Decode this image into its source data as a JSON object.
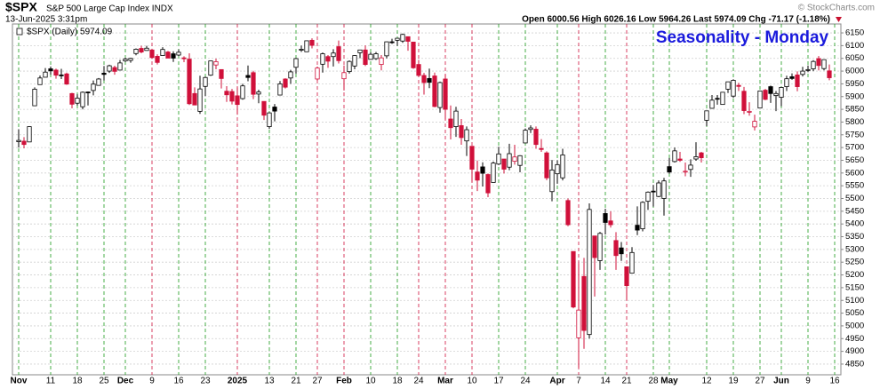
{
  "chart_data": {
    "type": "candlestick",
    "symbol": "$SPX",
    "title": "S&P 500 Large Cap Index INDX",
    "date": "13-Jun-2025 3:31pm",
    "quote": "Open 6000.56 High 6026.16 Low 5964.26 Last 5974.09 Chg -71.17 (-1.18%)",
    "watermark": "© StockCharts.com",
    "legend_label": "$SPX (Daily) 5974.09",
    "annotation": "Seasonality - Monday",
    "annotation_color": "#1a1adc",
    "up_color": "#000000",
    "down_color": "#d0103a",
    "week_up_color": "#1a9a1a",
    "week_down_color": "#d0103a",
    "grid": true,
    "categories": [
      "Nov",
      null,
      null,
      null,
      null,
      null,
      "11",
      null,
      null,
      null,
      null,
      "18",
      null,
      null,
      null,
      null,
      "25",
      null,
      null,
      null,
      "Dec",
      null,
      null,
      null,
      null,
      "9",
      null,
      null,
      null,
      null,
      "16",
      null,
      null,
      null,
      null,
      "23",
      null,
      null,
      null,
      null,
      null,
      "2025",
      null,
      null,
      null,
      null,
      null,
      "13",
      null,
      null,
      null,
      null,
      "21",
      null,
      null,
      null,
      "27",
      null,
      null,
      null,
      null,
      "Feb",
      null,
      null,
      null,
      null,
      "10",
      null,
      null,
      null,
      null,
      "18",
      null,
      null,
      null,
      "24",
      null,
      null,
      null,
      null,
      "Mar",
      null,
      null,
      null,
      null,
      "10",
      null,
      null,
      null,
      null,
      "17",
      null,
      null,
      null,
      null,
      "24",
      null,
      null,
      null,
      null,
      null,
      "Apr",
      null,
      null,
      null,
      "7",
      null,
      null,
      null,
      null,
      "14",
      null,
      null,
      null,
      "21",
      null,
      null,
      null,
      null,
      "28",
      null,
      null,
      "May",
      null,
      null,
      null,
      null,
      null,
      null,
      "12",
      null,
      null,
      null,
      null,
      "19",
      null,
      null,
      null,
      null,
      "27",
      null,
      null,
      null,
      "Jun",
      null,
      null,
      null,
      null,
      "9",
      null,
      null,
      null,
      null,
      "16"
    ],
    "open": [
      5723,
      5725,
      5722,
      5864,
      5947,
      5976,
      6009,
      6004,
      5985,
      5989,
      5912,
      5874,
      5860,
      5918,
      5924,
      5944,
      5992,
      6000,
      6014,
      6004,
      6040,
      6042,
      6069,
      6089,
      6081,
      6083,
      6058,
      6061,
      6075,
      6068,
      6063,
      6052,
      6047,
      5912,
      5842,
      5940,
      5984,
      6024,
      6006,
      5921,
      5920,
      5903,
      5892,
      5983,
      5994,
      5910,
      5881,
      5782,
      5859,
      5906,
      5969,
      5973,
      6015,
      6082,
      6076,
      6121,
      5969,
      6027,
      6057,
      6057,
      6096,
      5970,
      5998,
      6020,
      6072,
      6083,
      6046,
      6049,
      6026,
      6060,
      6115,
      6121,
      6118,
      6135,
      6114,
      6026,
      5983,
      5971,
      5981,
      5857,
      5969,
      5812,
      5782,
      5786,
      5726,
      5705,
      5604,
      5624,
      5594,
      5563,
      5635,
      5655,
      5623,
      5646,
      5630,
      5718,
      5771,
      5772,
      5696,
      5679,
      5527,
      5597,
      5581,
      5492,
      5292,
      4953,
      5194,
      4966,
      5353,
      5256,
      5441,
      5412,
      5335,
      5306,
      5232,
      5207,
      5395,
      5381,
      5489,
      5529,
      5508,
      5500,
      5625,
      5645,
      5655,
      5605,
      5614,
      5655,
      5679,
      5807,
      5854,
      5893,
      5869,
      5929,
      5902,
      5944,
      5921,
      5841,
      5781,
      5855,
      5925,
      5939,
      5904,
      5897,
      5939,
      5978,
      5985,
      5987,
      6004,
      6009,
      6049,
      6010,
      6001,
      null
    ],
    "high": [
      5772,
      5741,
      5783,
      5936,
      5983,
      6012,
      6018,
      6010,
      6009,
      5994,
      5915,
      5909,
      5920,
      5920,
      5963,
      5973,
      6020,
      6025,
      6021,
      6044,
      6053,
      6052,
      6089,
      6099,
      6099,
      6088,
      6066,
      6094,
      6079,
      6078,
      6085,
      6058,
      6070,
      5936,
      5982,
      5978,
      6040,
      6049,
      6007,
      5941,
      5930,
      5936,
      5950,
      6022,
      6001,
      5927,
      5881,
      5838,
      5871,
      5961,
      5972,
      6005,
      6052,
      6100,
      6119,
      6129,
      6018,
      6073,
      6063,
      6086,
      6120,
      6022,
      6042,
      6062,
      6084,
      6101,
      6074,
      6075,
      6063,
      6116,
      6127,
      6129,
      6147,
      6135,
      6114,
      6044,
      5993,
      6010,
      5994,
      5959,
      5987,
      5865,
      5860,
      5812,
      5783,
      5705,
      5649,
      5642,
      5598,
      5645,
      5703,
      5655,
      5715,
      5711,
      5670,
      5775,
      5787,
      5783,
      5733,
      5685,
      5651,
      5650,
      5695,
      5500,
      5292,
      5246,
      5267,
      5481,
      5353,
      5369,
      5460,
      5450,
      5368,
      5329,
      5232,
      5309,
      5469,
      5489,
      5528,
      5553,
      5571,
      5581,
      5659,
      5700,
      5683,
      5641,
      5654,
      5721,
      5683,
      5845,
      5906,
      5906,
      5917,
      5958,
      5968,
      5954,
      5938,
      5878,
      5829,
      5923,
      5930,
      5943,
      5922,
      5938,
      5982,
      5991,
      5999,
      6017,
      6022,
      6043,
      6059,
      6045,
      6026,
      null
    ],
    "low": [
      5700,
      5697,
      5722,
      5864,
      5947,
      5976,
      5986,
      5970,
      5969,
      5946,
      5854,
      5865,
      5850,
      5865,
      5905,
      5944,
      5963,
      5993,
      5986,
      6004,
      6036,
      6033,
      6062,
      6070,
      6080,
      6048,
      6026,
      6061,
      6051,
      6036,
      6059,
      6035,
      5867,
      5866,
      5832,
      5902,
      5981,
      6007,
      5932,
      5879,
      5869,
      5829,
      5888,
      5960,
      5890,
      5874,
      5808,
      5773,
      5803,
      5906,
      5932,
      5950,
      5990,
      6075,
      6075,
      6089,
      5962,
      5994,
      6013,
      6018,
      6030,
      5924,
      5990,
      6007,
      6051,
      6020,
      6045,
      6044,
      6003,
      6050,
      6107,
      6099,
      6111,
      6080,
      6009,
      5977,
      5908,
      5933,
      5858,
      5837,
      5810,
      5732,
      5742,
      5711,
      5667,
      5565,
      5529,
      5547,
      5505,
      5563,
      5631,
      5598,
      5611,
      5633,
      5603,
      5718,
      5757,
      5695,
      5683,
      5572,
      5489,
      5558,
      5571,
      5391,
      5069,
      4835,
      4910,
      4950,
      5115,
      5220,
      5359,
      5386,
      5220,
      5255,
      5101,
      5207,
      5356,
      5371,
      5455,
      5468,
      5505,
      5433,
      5597,
      5641,
      5644,
      5587,
      5585,
      5648,
      5641,
      5784,
      5852,
      5868,
      5868,
      5914,
      5895,
      5922,
      5831,
      5825,
      5767,
      5855,
      5886,
      5875,
      5843,
      5862,
      5922,
      5966,
      5921,
      5979,
      5996,
      6000,
      6003,
      6003,
      5964,
      null
    ],
    "close": [
      5728,
      5712,
      5782,
      5929,
      5973,
      5996,
      6001,
      5984,
      5985,
      5949,
      5870,
      5894,
      5917,
      5917,
      5949,
      5969,
      5987,
      6021,
      5999,
      6032,
      6047,
      6050,
      6086,
      6075,
      6090,
      6053,
      6034,
      6085,
      6051,
      6051,
      6074,
      6050,
      5872,
      5867,
      5930,
      5975,
      6040,
      6037,
      5971,
      5907,
      5882,
      5869,
      5942,
      5975,
      5909,
      5918,
      5827,
      5836,
      5843,
      5950,
      5937,
      5997,
      6049,
      6086,
      6119,
      6101,
      6012,
      6068,
      6039,
      6071,
      6041,
      5994,
      6038,
      6061,
      6083,
      6026,
      6066,
      6068,
      6052,
      6115,
      6115,
      6129,
      6144,
      6117,
      6013,
      5983,
      5955,
      5956,
      5861,
      5955,
      5850,
      5778,
      5843,
      5739,
      5770,
      5615,
      5572,
      5599,
      5522,
      5639,
      5675,
      5615,
      5676,
      5663,
      5668,
      5768,
      5777,
      5712,
      5693,
      5581,
      5612,
      5633,
      5671,
      5397,
      5074,
      5062,
      4982,
      5457,
      5268,
      5363,
      5406,
      5397,
      5276,
      5283,
      5158,
      5288,
      5376,
      5485,
      5525,
      5529,
      5561,
      5569,
      5604,
      5687,
      5650,
      5607,
      5631,
      5664,
      5660,
      5844,
      5886,
      5892,
      5917,
      5958,
      5964,
      5940,
      5845,
      5842,
      5803,
      5922,
      5889,
      5912,
      5912,
      5936,
      5970,
      5971,
      5939,
      6000,
      6006,
      6038,
      6022,
      6045,
      5974,
      null
    ],
    "ylim": [
      4808,
      6185
    ],
    "yticks": [
      4850,
      4900,
      4950,
      5000,
      5050,
      5100,
      5150,
      5200,
      5250,
      5300,
      5350,
      5400,
      5450,
      5500,
      5550,
      5600,
      5650,
      5700,
      5750,
      5800,
      5850,
      5900,
      5950,
      6000,
      6050,
      6100,
      6150
    ]
  }
}
